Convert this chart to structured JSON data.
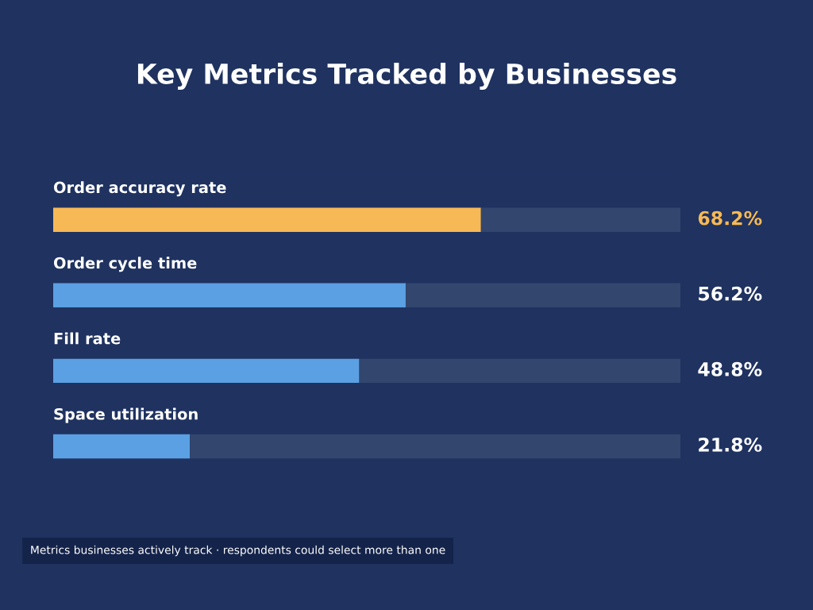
{
  "chart_data": {
    "type": "bar",
    "orientation": "horizontal",
    "stacked": true,
    "title": "Key Metrics Tracked by Businesses",
    "categories": [
      "Order accuracy rate",
      "Order cycle time",
      "Fill rate",
      "Space utilization"
    ],
    "series": [
      {
        "colors": [
          "#f7b955",
          "#5aa0e3",
          "#5aa0e3",
          "#5aa0e3"
        ],
        "values": [
          68.2,
          56.2,
          48.8,
          21.8
        ],
        "value_labels": [
          "68.2%",
          "56.2%",
          "48.8%",
          "21.8%"
        ]
      },
      {
        "color": "#33466e",
        "values": [
          31.8,
          43.8,
          51.2,
          78.2
        ]
      }
    ],
    "xlim": [
      0,
      100
    ],
    "annotations": [
      "Metrics businesses actively track · respondents could select more than one"
    ]
  }
}
